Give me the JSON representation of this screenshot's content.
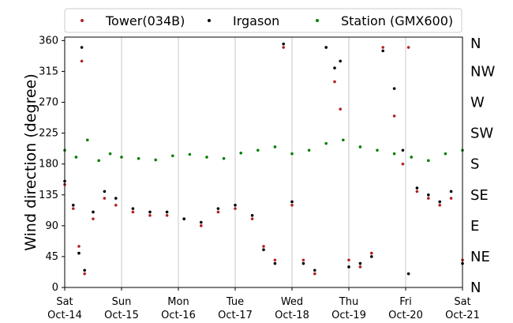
{
  "chart_data": {
    "type": "scatter",
    "ylabel": "Wind direction (degree)",
    "xlabel": "",
    "ylim": [
      0,
      365
    ],
    "xlim": [
      0,
      7
    ],
    "y_ticks": [
      0,
      45,
      90,
      135,
      180,
      225,
      270,
      315,
      360
    ],
    "x_ticks": [
      {
        "value": 0,
        "day": "Sat",
        "date": "Oct-14"
      },
      {
        "value": 1,
        "day": "Sun",
        "date": "Oct-15"
      },
      {
        "value": 2,
        "day": "Mon",
        "date": "Oct-16"
      },
      {
        "value": 3,
        "day": "Tue",
        "date": "Oct-17"
      },
      {
        "value": 4,
        "day": "Wed",
        "date": "Oct-18"
      },
      {
        "value": 5,
        "day": "Thu",
        "date": "Oct-19"
      },
      {
        "value": 6,
        "day": "Fri",
        "date": "Oct-20"
      },
      {
        "value": 7,
        "day": "Sat",
        "date": "Oct-21"
      }
    ],
    "x_unit": "days from Sat Oct-14",
    "grid": "vertical-only",
    "legend_position": "top-center",
    "compass_labels": [
      {
        "value": 0,
        "label": "N"
      },
      {
        "value": 45,
        "label": "NE"
      },
      {
        "value": 90,
        "label": "E"
      },
      {
        "value": 135,
        "label": "SE"
      },
      {
        "value": 180,
        "label": "S"
      },
      {
        "value": 225,
        "label": "SW"
      },
      {
        "value": 270,
        "label": "W"
      },
      {
        "value": 315,
        "label": "NW"
      },
      {
        "value": 360,
        "label": "N"
      }
    ],
    "series": [
      {
        "name": "Tower(034B)",
        "color": "#b22222",
        "x": [
          0.0,
          0.15,
          0.25,
          0.3,
          0.35,
          0.5,
          0.7,
          0.9,
          1.2,
          1.5,
          1.8,
          2.1,
          2.4,
          2.7,
          3.0,
          3.3,
          3.5,
          3.7,
          3.85,
          4.0,
          4.2,
          4.4,
          4.6,
          4.75,
          4.85,
          5.0,
          5.2,
          5.4,
          5.6,
          5.8,
          5.95,
          6.05,
          6.2,
          6.4,
          6.6,
          6.8,
          7.0
        ],
        "y": [
          150,
          115,
          60,
          330,
          20,
          100,
          130,
          120,
          110,
          105,
          105,
          100,
          90,
          110,
          115,
          100,
          60,
          40,
          350,
          120,
          40,
          20,
          350,
          300,
          260,
          40,
          30,
          50,
          350,
          250,
          180,
          350,
          140,
          130,
          120,
          130,
          40
        ]
      },
      {
        "name": "Irgason",
        "color": "#000000",
        "x": [
          0.0,
          0.15,
          0.25,
          0.3,
          0.35,
          0.5,
          0.7,
          0.9,
          1.2,
          1.5,
          1.8,
          2.1,
          2.4,
          2.7,
          3.0,
          3.3,
          3.5,
          3.7,
          3.85,
          4.0,
          4.2,
          4.4,
          4.6,
          4.75,
          4.85,
          5.0,
          5.2,
          5.4,
          5.6,
          5.8,
          5.95,
          6.05,
          6.2,
          6.4,
          6.6,
          6.8,
          7.0
        ],
        "y": [
          155,
          120,
          50,
          350,
          25,
          110,
          140,
          130,
          115,
          110,
          110,
          100,
          95,
          115,
          120,
          105,
          55,
          35,
          355,
          125,
          35,
          25,
          350,
          320,
          330,
          30,
          35,
          45,
          345,
          290,
          200,
          20,
          145,
          135,
          125,
          140,
          35
        ]
      },
      {
        "name": "Station (GMX600)",
        "color": "#008000",
        "x": [
          0.0,
          0.2,
          0.4,
          0.6,
          0.8,
          1.0,
          1.3,
          1.6,
          1.9,
          2.2,
          2.5,
          2.8,
          3.1,
          3.4,
          3.7,
          4.0,
          4.3,
          4.6,
          4.9,
          5.2,
          5.5,
          5.8,
          6.1,
          6.4,
          6.7,
          7.0
        ],
        "y": [
          200,
          190,
          215,
          185,
          195,
          190,
          188,
          186,
          192,
          194,
          190,
          188,
          196,
          200,
          205,
          195,
          200,
          210,
          215,
          205,
          200,
          195,
          190,
          185,
          195,
          200
        ]
      }
    ]
  }
}
